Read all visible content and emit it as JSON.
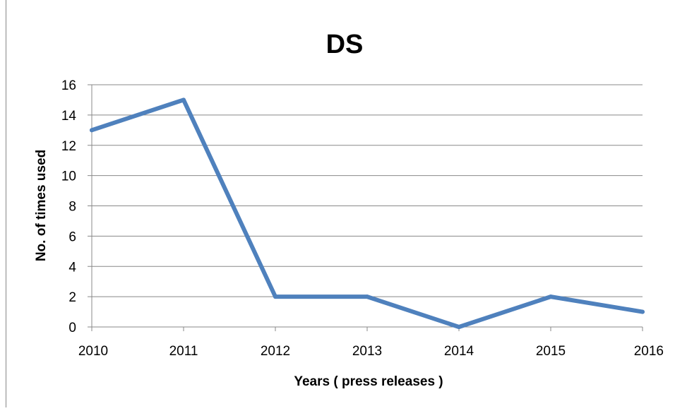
{
  "chart_data": {
    "type": "line",
    "title": "DS",
    "xlabel": "Years ( press releases )",
    "ylabel": "No. of times used",
    "categories": [
      "2010",
      "2011",
      "2012",
      "2013",
      "2014",
      "2015",
      "2016"
    ],
    "series": [
      {
        "values": [
          13,
          15,
          2,
          2,
          0,
          2,
          1
        ],
        "color": "#4F81BD"
      }
    ],
    "ylim": [
      0,
      16
    ],
    "yticks": [
      "0",
      "2",
      "4",
      "6",
      "8",
      "10",
      "12",
      "14",
      "16"
    ],
    "grid": true,
    "legend": "none"
  }
}
